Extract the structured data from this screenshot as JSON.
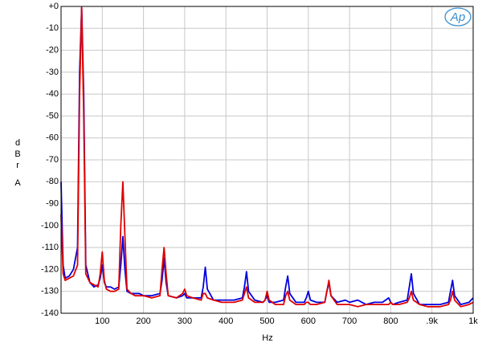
{
  "chart_data": {
    "type": "line",
    "logo": "Ap",
    "xlabel": "Hz",
    "ylabel": "dBr",
    "ylabel_unit": "A",
    "xlim": [
      0,
      1000
    ],
    "ylim": [
      -140,
      0
    ],
    "xticks": [
      100,
      200,
      300,
      400,
      500,
      600,
      700,
      800,
      {
        "value": 900,
        "label": ".9k"
      },
      {
        "value": 1000,
        "label": "1k"
      }
    ],
    "yticks": [
      {
        "value": 0,
        "label": "+0"
      },
      -10,
      -20,
      -30,
      -40,
      -50,
      -60,
      -70,
      -80,
      -90,
      -100,
      -110,
      -120,
      -130,
      -140
    ],
    "grid": true,
    "x": [
      0,
      5,
      10,
      20,
      30,
      40,
      45,
      50,
      55,
      60,
      70,
      80,
      90,
      95,
      100,
      105,
      110,
      120,
      130,
      140,
      145,
      150,
      155,
      160,
      170,
      180,
      190,
      200,
      220,
      240,
      245,
      250,
      255,
      260,
      280,
      295,
      300,
      305,
      320,
      340,
      345,
      350,
      355,
      370,
      390,
      420,
      440,
      445,
      450,
      455,
      470,
      490,
      495,
      500,
      505,
      520,
      540,
      545,
      550,
      555,
      570,
      590,
      595,
      600,
      605,
      620,
      640,
      645,
      650,
      655,
      670,
      690,
      700,
      720,
      740,
      760,
      780,
      795,
      800,
      805,
      820,
      840,
      845,
      850,
      855,
      870,
      890,
      920,
      940,
      945,
      950,
      955,
      970,
      990,
      1000
    ],
    "series": [
      {
        "color": "#0000e0",
        "values": [
          -80,
          -118,
          -124,
          -123,
          -120,
          -110,
          -30,
          -0.5,
          -40,
          -118,
          -126,
          -128,
          -127,
          -124,
          -118,
          -126,
          -128,
          -128,
          -129,
          -128,
          -118,
          -105,
          -120,
          -130,
          -131,
          -131,
          -131,
          -132,
          -132,
          -131,
          -125,
          -115,
          -126,
          -132,
          -133,
          -132,
          -131,
          -133,
          -133,
          -133,
          -128,
          -119,
          -129,
          -134,
          -134,
          -134,
          -133,
          -128,
          -121,
          -130,
          -134,
          -135,
          -134,
          -132,
          -135,
          -135,
          -134,
          -128,
          -123,
          -131,
          -135,
          -135,
          -133,
          -130,
          -134,
          -135,
          -135,
          -130,
          -126,
          -132,
          -135,
          -134,
          -135,
          -134,
          -136,
          -135,
          -135,
          -133,
          -135,
          -136,
          -135,
          -134,
          -128,
          -122,
          -131,
          -136,
          -136,
          -136,
          -135,
          -130,
          -125,
          -132,
          -136,
          -135,
          -133
        ]
      },
      {
        "color": "#e00000",
        "values": [
          -95,
          -122,
          -125,
          -124,
          -123,
          -118,
          -40,
          -0.5,
          -50,
          -122,
          -126,
          -127,
          -128,
          -122,
          -112,
          -125,
          -129,
          -130,
          -130,
          -129,
          -100,
          -80,
          -105,
          -129,
          -131,
          -132,
          -132,
          -132,
          -133,
          -132,
          -120,
          -110,
          -122,
          -132,
          -133,
          -131,
          -129,
          -132,
          -133,
          -134,
          -131,
          -131,
          -133,
          -134,
          -135,
          -135,
          -134,
          -131,
          -128,
          -133,
          -135,
          -135,
          -134,
          -130,
          -134,
          -136,
          -136,
          -132,
          -130,
          -134,
          -136,
          -136,
          -135,
          -135,
          -136,
          -136,
          -135,
          -130,
          -125,
          -132,
          -136,
          -136,
          -136,
          -137,
          -136,
          -136,
          -136,
          -136,
          -135,
          -136,
          -136,
          -135,
          -133,
          -130,
          -134,
          -136,
          -137,
          -137,
          -136,
          -134,
          -130,
          -134,
          -137,
          -136,
          -135
        ]
      }
    ]
  }
}
